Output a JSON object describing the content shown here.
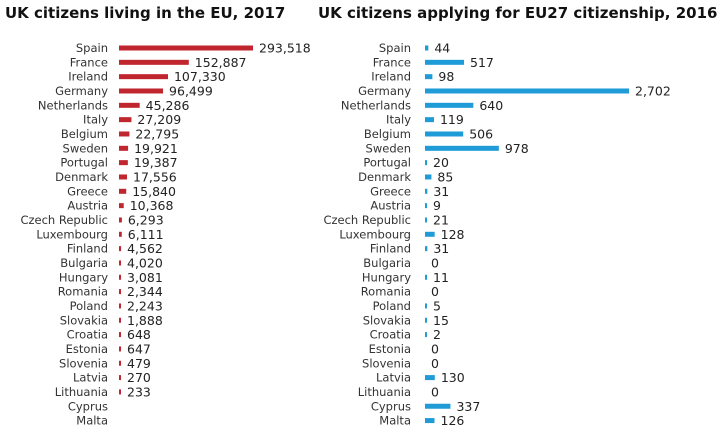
{
  "chart_data": [
    {
      "type": "bar",
      "orientation": "horizontal",
      "title": "UK citizens living in the EU, 2017",
      "color": "#c0262d",
      "categories": [
        "Spain",
        "France",
        "Ireland",
        "Germany",
        "Netherlands",
        "Italy",
        "Belgium",
        "Sweden",
        "Portugal",
        "Denmark",
        "Greece",
        "Austria",
        "Czech Republic",
        "Luxembourg",
        "Finland",
        "Bulgaria",
        "Hungary",
        "Romania",
        "Poland",
        "Slovakia",
        "Croatia",
        "Estonia",
        "Slovenia",
        "Latvia",
        "Lithuania",
        "Cyprus",
        "Malta"
      ],
      "values": [
        293518,
        152887,
        107330,
        96499,
        45286,
        27209,
        22795,
        19921,
        19387,
        17556,
        15840,
        10368,
        6293,
        6111,
        4562,
        4020,
        3081,
        2344,
        2243,
        1888,
        648,
        647,
        479,
        270,
        233,
        null,
        null
      ],
      "labels": [
        "293,518",
        "152,887",
        "107,330",
        "96,499",
        "45,286",
        "27,209",
        "22,795",
        "19,921",
        "19,387",
        "17,556",
        "15,840",
        "10,368",
        "6,293",
        "6,111",
        "4,562",
        "4,020",
        "3,081",
        "2,344",
        "2,243",
        "1,888",
        "648",
        "647",
        "479",
        "270",
        "233",
        "",
        ""
      ],
      "xlim": [
        0,
        293518
      ]
    },
    {
      "type": "bar",
      "orientation": "horizontal",
      "title": "UK citizens applying for EU27 citizenship, 2016",
      "color": "#1f9bd7",
      "categories": [
        "Spain",
        "France",
        "Ireland",
        "Germany",
        "Netherlands",
        "Italy",
        "Belgium",
        "Sweden",
        "Portugal",
        "Denmark",
        "Greece",
        "Austria",
        "Czech Republic",
        "Luxembourg",
        "Finland",
        "Bulgaria",
        "Hungary",
        "Romania",
        "Poland",
        "Slovakia",
        "Croatia",
        "Estonia",
        "Slovenia",
        "Latvia",
        "Lithuania",
        "Cyprus",
        "Malta"
      ],
      "values": [
        44,
        517,
        98,
        2702,
        640,
        119,
        506,
        978,
        20,
        85,
        31,
        9,
        21,
        128,
        31,
        0,
        11,
        0,
        5,
        15,
        2,
        0,
        0,
        130,
        0,
        337,
        126
      ],
      "labels": [
        "44",
        "517",
        "98",
        "2,702",
        "640",
        "119",
        "506",
        "978",
        "20",
        "85",
        "31",
        "9",
        "21",
        "128",
        "31",
        "0",
        "11",
        "0",
        "5",
        "15",
        "2",
        "0",
        "0",
        "130",
        "0",
        "337",
        "126"
      ],
      "xlim": [
        0,
        2702
      ]
    }
  ]
}
